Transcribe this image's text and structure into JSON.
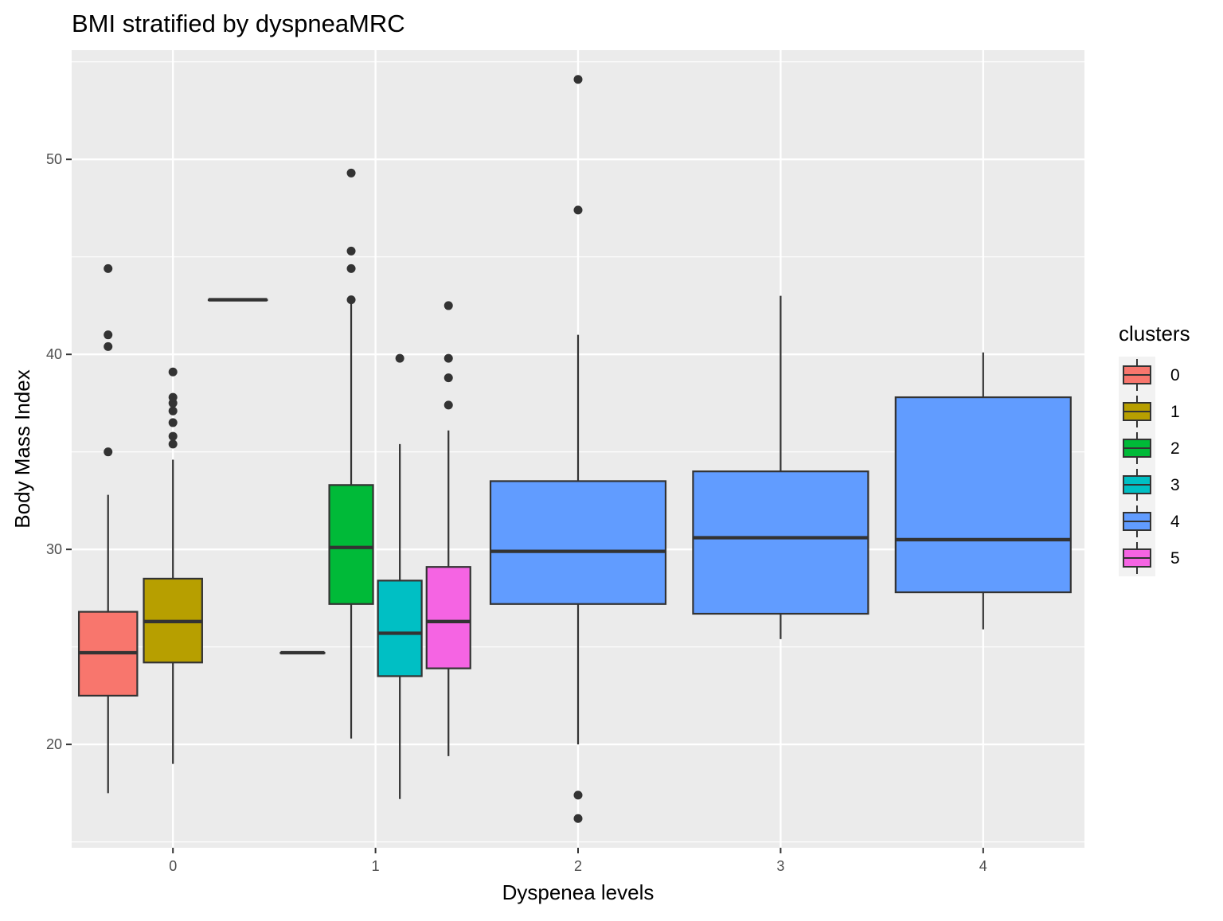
{
  "chart_data": {
    "type": "box",
    "title": "BMI stratified by dyspneaMRC",
    "xlabel": "Dyspenea levels",
    "ylabel": "Body Mass Index",
    "categories": [
      "0",
      "1",
      "2",
      "3",
      "4"
    ],
    "ylim": [
      14.7,
      55.6
    ],
    "yticks": [
      20,
      30,
      40,
      50
    ],
    "grid": true,
    "legend": {
      "title": "clusters",
      "position": "right",
      "entries": [
        {
          "label": "0",
          "color": "#F8766D"
        },
        {
          "label": "1",
          "color": "#B79F00"
        },
        {
          "label": "2",
          "color": "#00BA38"
        },
        {
          "label": "3",
          "color": "#00BFC4"
        },
        {
          "label": "4",
          "color": "#619CFF"
        },
        {
          "label": "5",
          "color": "#F564E3"
        }
      ]
    },
    "boxes": [
      {
        "x": "0",
        "cluster": "0",
        "whisker_low": 17.5,
        "q1": 22.5,
        "median": 24.7,
        "q3": 26.8,
        "whisker_high": 32.8,
        "outliers": [
          35.0,
          40.4,
          41.0,
          44.4
        ]
      },
      {
        "x": "0",
        "cluster": "1",
        "whisker_low": 19.0,
        "q1": 24.2,
        "median": 26.3,
        "q3": 28.5,
        "whisker_high": 34.6,
        "outliers": [
          35.4,
          35.8,
          36.5,
          37.1,
          37.5,
          37.8,
          39.1
        ]
      },
      {
        "x": "0",
        "cluster": "2",
        "whisker_low": 42.8,
        "q1": 42.8,
        "median": 42.8,
        "q3": 42.8,
        "whisker_high": 42.8,
        "outliers": []
      },
      {
        "x": "1",
        "cluster": "1",
        "whisker_low": 24.7,
        "q1": 24.7,
        "median": 24.7,
        "q3": 24.7,
        "whisker_high": 24.7,
        "outliers": []
      },
      {
        "x": "1",
        "cluster": "2",
        "whisker_low": 20.3,
        "q1": 27.2,
        "median": 30.1,
        "q3": 33.3,
        "whisker_high": 42.7,
        "outliers": [
          42.8,
          44.4,
          45.3,
          49.3
        ]
      },
      {
        "x": "1",
        "cluster": "3",
        "whisker_low": 17.2,
        "q1": 23.5,
        "median": 25.7,
        "q3": 28.4,
        "whisker_high": 35.4,
        "outliers": [
          39.8
        ]
      },
      {
        "x": "1",
        "cluster": "5",
        "whisker_low": 19.4,
        "q1": 23.9,
        "median": 26.3,
        "q3": 29.1,
        "whisker_high": 36.1,
        "outliers": [
          37.4,
          38.8,
          39.8,
          42.5
        ]
      },
      {
        "x": "2",
        "cluster": "4",
        "whisker_low": 20.0,
        "q1": 27.2,
        "median": 29.9,
        "q3": 33.5,
        "whisker_high": 41.0,
        "outliers": [
          16.2,
          17.4,
          47.4,
          54.1
        ]
      },
      {
        "x": "3",
        "cluster": "4",
        "whisker_low": 25.4,
        "q1": 26.7,
        "median": 30.6,
        "q3": 34.0,
        "whisker_high": 43.0,
        "outliers": []
      },
      {
        "x": "4",
        "cluster": "4",
        "whisker_low": 25.9,
        "q1": 27.8,
        "median": 30.5,
        "q3": 37.8,
        "whisker_high": 40.1,
        "outliers": []
      }
    ]
  }
}
